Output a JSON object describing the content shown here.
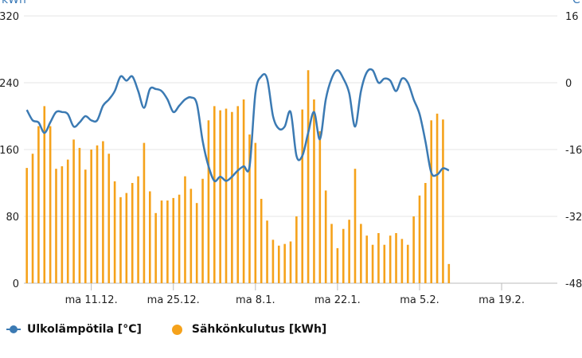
{
  "chart_data": {
    "type": "bar+line",
    "left_axis": {
      "unit_label": "kWh",
      "ticks": [
        "0",
        "80",
        "160",
        "240",
        "320"
      ],
      "range": [
        0,
        320
      ]
    },
    "right_axis": {
      "unit_label": "°C",
      "ticks": [
        "-48",
        "-32",
        "-16",
        "0",
        "16"
      ],
      "range": [
        -48,
        16
      ]
    },
    "x_axis": {
      "ticks": [
        "ma 11.12.",
        "ma 25.12.",
        "ma 8.1.",
        "ma 22.1.",
        "ma 5.2.",
        "ma 19.2."
      ],
      "tick_index": [
        11,
        25,
        39,
        53,
        67,
        81
      ],
      "n_days": 91
    },
    "series": [
      {
        "name": "Sähkönkulutus [kWh]",
        "kind": "bar",
        "color": "#f5a21b",
        "values": [
          138,
          155,
          188,
          212,
          188,
          137,
          140,
          148,
          172,
          162,
          136,
          160,
          165,
          170,
          155,
          122,
          103,
          108,
          120,
          128,
          168,
          110,
          84,
          99,
          99,
          102,
          106,
          128,
          113,
          96,
          125,
          195,
          212,
          207,
          209,
          205,
          212,
          220,
          178,
          168,
          101,
          75,
          52,
          45,
          47,
          50,
          80,
          208,
          255,
          220,
          182,
          111,
          71,
          42,
          65,
          76,
          137,
          71,
          57,
          46,
          60,
          46,
          57,
          60,
          53,
          46,
          80,
          105,
          120,
          195,
          203,
          196,
          23
        ]
      },
      {
        "name": "Ulkolämpötila [°C]",
        "kind": "line",
        "color": "#3b7ab3",
        "values": [
          -6.5,
          -9,
          -9.5,
          -12,
          -9.5,
          -7,
          -7,
          -7.5,
          -10.5,
          -9.5,
          -8,
          -9,
          -9,
          -5.5,
          -4,
          -2,
          1.5,
          0.5,
          1.5,
          -2,
          -6,
          -1.5,
          -1.5,
          -2,
          -4,
          -7,
          -5.5,
          -4,
          -3.5,
          -5,
          -14,
          -20,
          -23.5,
          -22.5,
          -23.5,
          -22.5,
          -21,
          -20,
          -20,
          -2.5,
          1.5,
          1,
          -8,
          -11,
          -10.5,
          -7,
          -17.5,
          -17.5,
          -12,
          -7,
          -13.5,
          -4,
          1,
          3,
          1,
          -2.5,
          -10.5,
          -2,
          2.5,
          3,
          0,
          1,
          0.5,
          -2,
          1,
          0,
          -4,
          -7.5,
          -14,
          -21.5,
          -22,
          -20.5,
          -21
        ]
      }
    ]
  },
  "legend": {
    "temperature": "Ulkolämpötila [°C]",
    "consumption": "Sähkönkulutus [kWh]"
  }
}
